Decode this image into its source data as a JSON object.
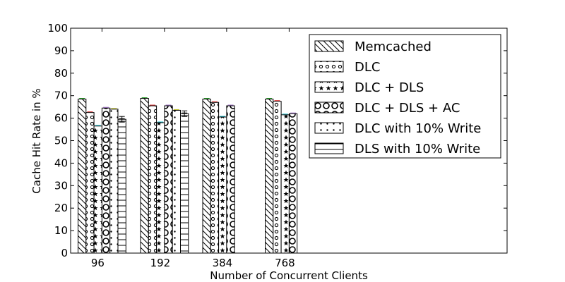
{
  "chart_data": {
    "type": "bar",
    "xlabel": "Number of Concurrent Clients",
    "ylabel": "Cache Hit Rate in %",
    "ylim": [
      0,
      100
    ],
    "yticks": [
      0,
      10,
      20,
      30,
      40,
      50,
      60,
      70,
      80,
      90,
      100
    ],
    "categories": [
      "96",
      "192",
      "384",
      "768"
    ],
    "legend_position": "top-right",
    "series": [
      {
        "name": "Memcached",
        "pattern": "diagonal-hatch",
        "error_color": "#2ca02c",
        "values": [
          68.5,
          68.8,
          68.5,
          68.5
        ]
      },
      {
        "name": "DLC",
        "pattern": "small-circles",
        "error_color": "#d62728",
        "values": [
          62.5,
          65.5,
          67.0,
          67.5
        ]
      },
      {
        "name": "DLC + DLS",
        "pattern": "stars",
        "error_color": "#17becf",
        "values": [
          56.5,
          58.0,
          60.5,
          61.5
        ]
      },
      {
        "name": "DLC + DLS + AC",
        "pattern": "large-circles",
        "error_color": "#9467bd",
        "values": [
          64.5,
          65.5,
          65.5,
          62.0
        ]
      },
      {
        "name": "DLC with 10% Write",
        "pattern": "dots",
        "error_color": "#bcbd22",
        "values": [
          64.0,
          63.5,
          null,
          null
        ]
      },
      {
        "name": "DLS with 10% Write",
        "pattern": "horizontal-lines",
        "error_color": "#000000",
        "values": [
          59.5,
          62.0,
          null,
          null
        ]
      }
    ]
  }
}
